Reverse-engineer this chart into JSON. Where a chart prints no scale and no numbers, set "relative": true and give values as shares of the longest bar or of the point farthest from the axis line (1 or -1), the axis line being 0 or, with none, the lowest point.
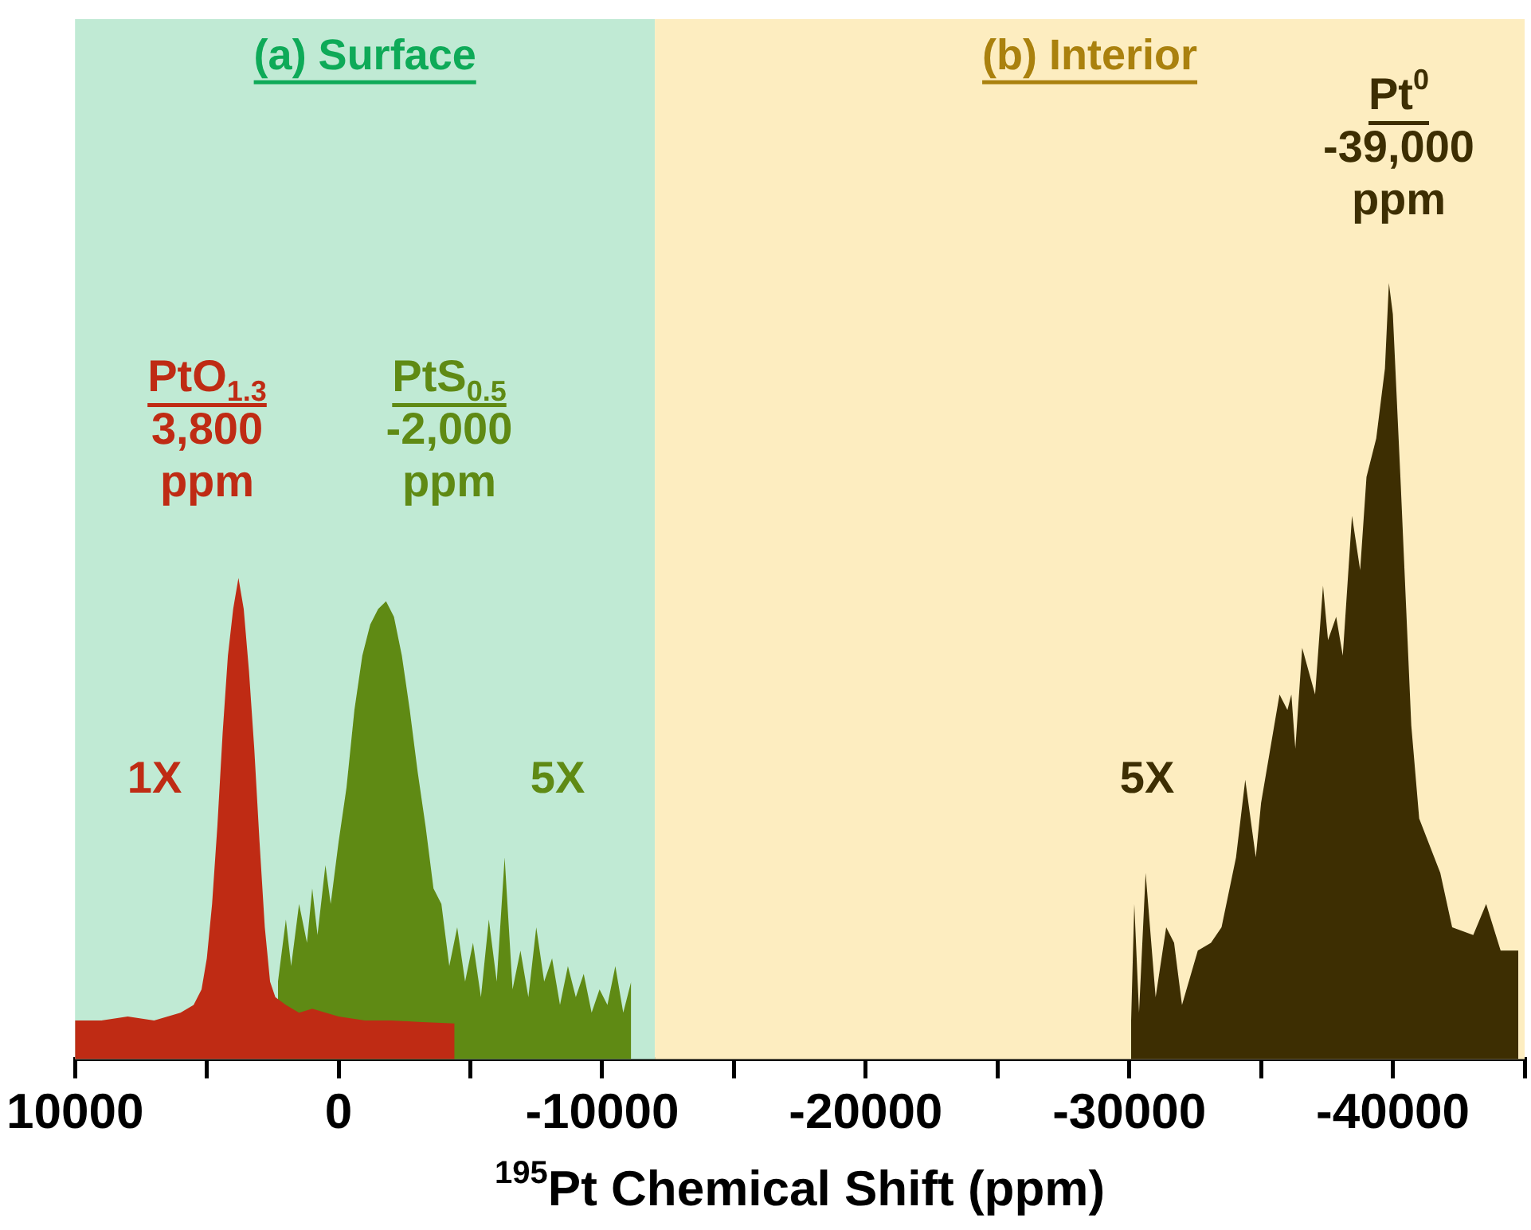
{
  "chart_data": {
    "type": "area",
    "relative": true,
    "xlabel": "$^{195}$Pt Chemical Shift (ppm)",
    "xlim": [
      10000,
      -45000
    ],
    "xticks": [
      10000,
      {
        "value": 5000,
        "label": null
      },
      0,
      {
        "value": -5000,
        "label": null
      },
      -10000,
      {
        "value": -15000,
        "label": null
      },
      -20000,
      {
        "value": -25000,
        "label": null
      },
      -30000,
      {
        "value": -35000,
        "label": null
      },
      -40000,
      {
        "value": -45000,
        "label": null
      }
    ],
    "grid": false,
    "legend": false,
    "tick_labels": "x",
    "bands": [
      {
        "axis": "x",
        "from": 10000,
        "to": -12000,
        "label": "(a) Surface",
        "color": "#c0ead4"
      },
      {
        "axis": "x",
        "from": -12000,
        "to": -45000,
        "label": "(b) Interior",
        "color": "#fdedc0"
      }
    ],
    "series": [
      {
        "color": "#bf2b14",
        "x": [
          10000,
          9000,
          8000,
          7000,
          6000,
          5500,
          5200,
          5000,
          4800,
          4600,
          4400,
          4200,
          4000,
          3800,
          3600,
          3400,
          3200,
          3000,
          2800,
          2600,
          2400,
          2000,
          1500,
          1000,
          0,
          -1000,
          -2000,
          -3000,
          -4400
        ],
        "values": [
          0.05,
          0.05,
          0.055,
          0.05,
          0.06,
          0.07,
          0.09,
          0.13,
          0.2,
          0.3,
          0.42,
          0.52,
          0.58,
          0.62,
          0.58,
          0.5,
          0.4,
          0.28,
          0.17,
          0.1,
          0.08,
          0.07,
          0.06,
          0.065,
          0.055,
          0.05,
          0.05,
          0.048,
          0.046
        ]
      },
      {
        "color": "#5f8a14",
        "x": [
          2300,
          2000,
          1800,
          1500,
          1200,
          1000,
          800,
          500,
          300,
          0,
          -300,
          -600,
          -900,
          -1200,
          -1500,
          -1800,
          -2100,
          -2400,
          -2700,
          -3000,
          -3300,
          -3600,
          -3900,
          -4200,
          -4500,
          -4800,
          -5100,
          -5400,
          -5700,
          -6000,
          -6300,
          -6600,
          -6900,
          -7200,
          -7500,
          -7800,
          -8100,
          -8400,
          -8700,
          -9000,
          -9300,
          -9600,
          -9900,
          -10200,
          -10500,
          -10800,
          -11100
        ],
        "values": [
          0.1,
          0.18,
          0.12,
          0.2,
          0.15,
          0.22,
          0.16,
          0.25,
          0.2,
          0.28,
          0.35,
          0.45,
          0.52,
          0.56,
          0.58,
          0.59,
          0.57,
          0.52,
          0.45,
          0.37,
          0.3,
          0.22,
          0.2,
          0.12,
          0.17,
          0.1,
          0.15,
          0.08,
          0.18,
          0.1,
          0.26,
          0.09,
          0.14,
          0.08,
          0.17,
          0.1,
          0.13,
          0.07,
          0.12,
          0.08,
          0.11,
          0.06,
          0.09,
          0.07,
          0.12,
          0.06,
          0.1
        ]
      },
      {
        "color": "#3d2e02",
        "x": [
          -30070,
          -30190,
          -30370,
          -30620,
          -31000,
          -31400,
          -31700,
          -32000,
          -32600,
          -33100,
          -33500,
          -34050,
          -34400,
          -34800,
          -35000,
          -35700,
          -36000,
          -36150,
          -36300,
          -36560,
          -37050,
          -37350,
          -37540,
          -37850,
          -38100,
          -38450,
          -38760,
          -39000,
          -39370,
          -39700,
          -39850,
          -40000,
          -40300,
          -40700,
          -41000,
          -41800,
          -42250,
          -43050,
          -43540,
          -44090,
          -44760
        ],
        "values": [
          0.05,
          0.2,
          0.06,
          0.24,
          0.08,
          0.17,
          0.15,
          0.07,
          0.14,
          0.15,
          0.17,
          0.26,
          0.36,
          0.26,
          0.33,
          0.47,
          0.45,
          0.47,
          0.4,
          0.53,
          0.47,
          0.61,
          0.54,
          0.57,
          0.52,
          0.7,
          0.63,
          0.75,
          0.8,
          0.89,
          1,
          0.96,
          0.74,
          0.43,
          0.31,
          0.24,
          0.17,
          0.16,
          0.2,
          0.14,
          0.14
        ]
      }
    ],
    "annotations": [
      "PtO$_{1.3}$\n3,800\nppm",
      "PtS$_{0.5}$\n-2,000\nppm",
      "Pt$^{0}$\n-39,000\nppm",
      "1X",
      "5X",
      "5X"
    ]
  }
}
